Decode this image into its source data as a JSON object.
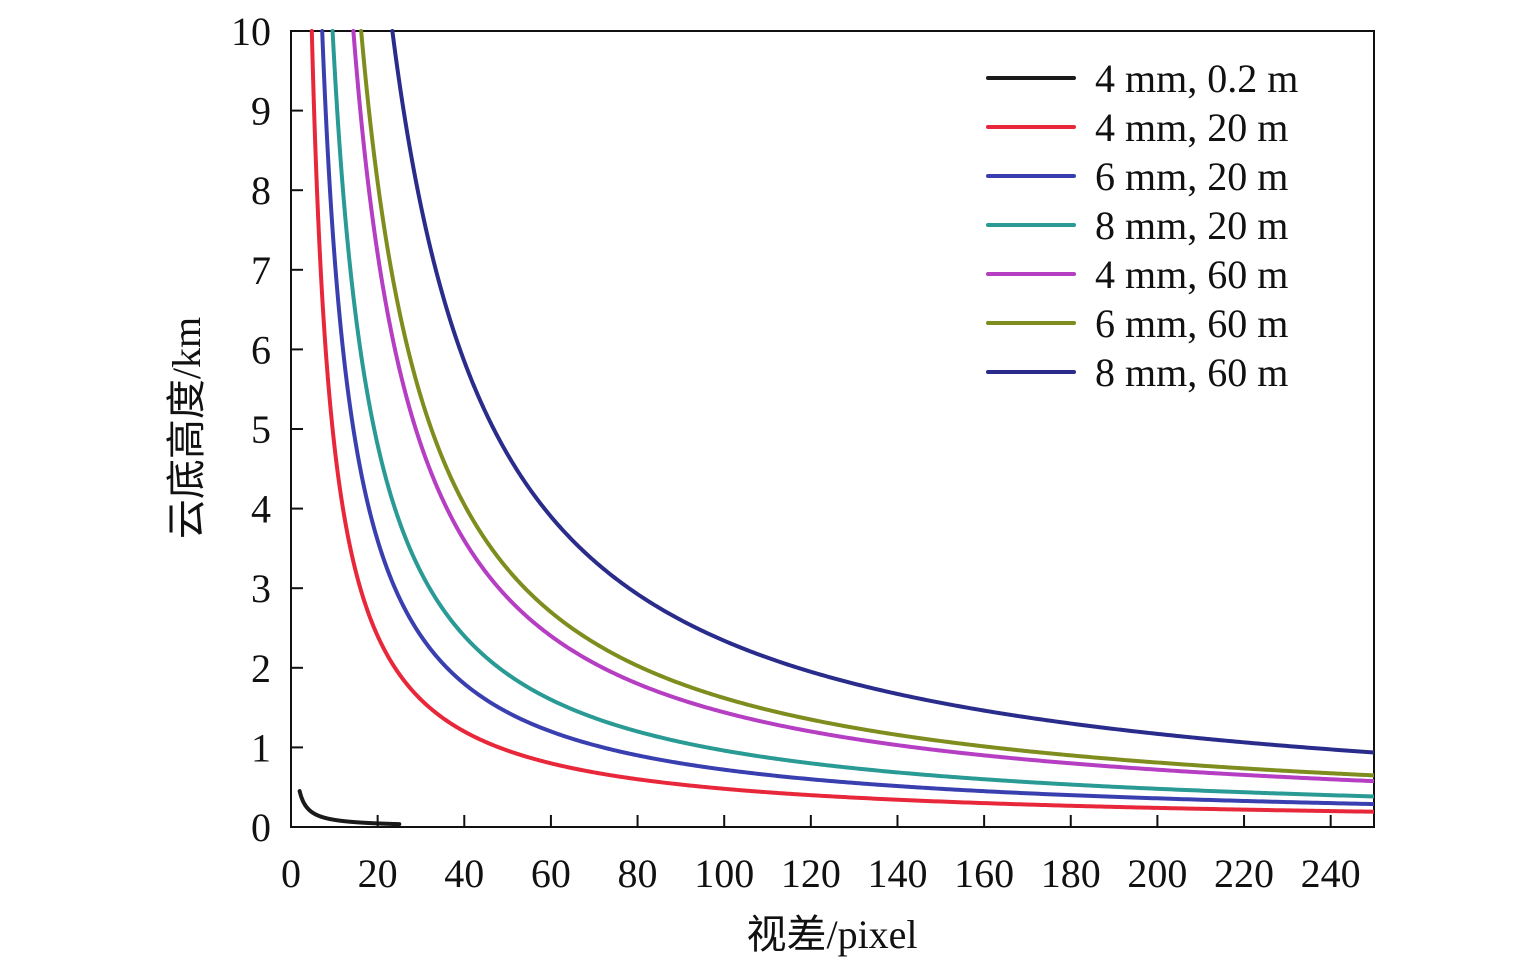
{
  "chart_data": {
    "type": "line",
    "title": "",
    "xlabel": "视差/pixel",
    "ylabel": "云底高度/km",
    "xlim": [
      0,
      250
    ],
    "ylim": [
      0,
      10
    ],
    "xticks": [
      0,
      20,
      40,
      60,
      80,
      100,
      120,
      140,
      160,
      180,
      200,
      220,
      240
    ],
    "yticks": [
      0,
      1,
      2,
      3,
      4,
      5,
      6,
      7,
      8,
      9,
      10
    ],
    "grid": false,
    "legend_position": "top-right",
    "model": "y = k / x",
    "series": [
      {
        "name": "4 mm, 0.2 m",
        "color": "#1a1a1a",
        "k": 0.9,
        "x_range": [
          2,
          25
        ]
      },
      {
        "name": "4 mm, 20 m",
        "color": "#e8283a",
        "k": 48,
        "x_range": [
          4.8,
          250
        ]
      },
      {
        "name": "6 mm, 20 m",
        "color": "#3a3fb0",
        "k": 72,
        "x_range": [
          7.2,
          250
        ]
      },
      {
        "name": "8 mm, 20 m",
        "color": "#2a9a95",
        "k": 96,
        "x_range": [
          9.6,
          250
        ]
      },
      {
        "name": "4 mm, 60 m",
        "color": "#b53ec2",
        "k": 144,
        "x_range": [
          14.4,
          250
        ]
      },
      {
        "name": "6 mm, 60 m",
        "color": "#7f8d1e",
        "k": 162,
        "x_range": [
          16.2,
          250
        ]
      },
      {
        "name": "8 mm, 60 m",
        "color": "#2a2c8c",
        "k": 234,
        "x_range": [
          23.4,
          250
        ]
      }
    ]
  }
}
